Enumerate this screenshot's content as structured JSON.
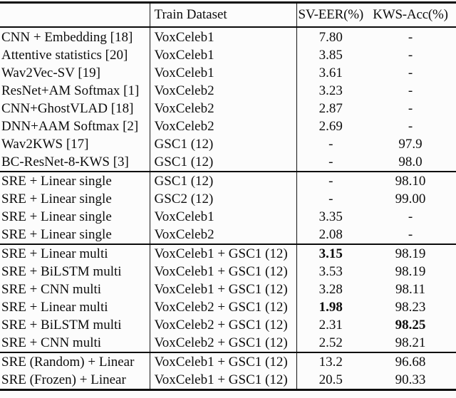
{
  "colors": {
    "background": "#fcfcfc",
    "text": "#0d0d0d",
    "rule": "#0a0a0a"
  },
  "table": {
    "columns": {
      "method": "",
      "dataset": "Train Dataset",
      "sv_eer": "SV-EER(%)",
      "kws_acc": "KWS-Acc(%)"
    },
    "empty_value": "-",
    "sections": [
      {
        "rows": [
          {
            "method": "CNN + Embedding [18]",
            "dataset": "VoxCeleb1",
            "sv": "7.80",
            "kws": "-"
          },
          {
            "method": "Attentive statistics [20]",
            "dataset": "VoxCeleb1",
            "sv": "3.85",
            "kws": "-"
          },
          {
            "method": "Wav2Vec-SV [19]",
            "dataset": "VoxCeleb1",
            "sv": "3.61",
            "kws": "-"
          },
          {
            "method": "ResNet+AM Softmax [1]",
            "dataset": "VoxCeleb2",
            "sv": "3.23",
            "kws": "-"
          },
          {
            "method": "CNN+GhostVLAD [18]",
            "dataset": "VoxCeleb2",
            "sv": "2.87",
            "kws": "-"
          },
          {
            "method": "DNN+AAM Softmax [2]",
            "dataset": "VoxCeleb2",
            "sv": "2.69",
            "kws": "-"
          },
          {
            "method": "Wav2KWS [17]",
            "dataset": "GSC1 (12)",
            "sv": "-",
            "kws": "97.9"
          },
          {
            "method": "BC-ResNet-8-KWS [3]",
            "dataset": "GSC1 (12)",
            "sv": "-",
            "kws": "98.0"
          }
        ]
      },
      {
        "rows": [
          {
            "method": "SRE + Linear single",
            "dataset": "GSC1 (12)",
            "sv": "-",
            "kws": "98.10"
          },
          {
            "method": "SRE + Linear single",
            "dataset": "GSC2 (12)",
            "sv": "-",
            "kws": "99.00"
          },
          {
            "method": "SRE + Linear single",
            "dataset": "VoxCeleb1",
            "sv": "3.35",
            "kws": "-"
          },
          {
            "method": "SRE + Linear single",
            "dataset": "VoxCeleb2",
            "sv": "2.08",
            "kws": "-"
          }
        ]
      },
      {
        "rows": [
          {
            "method": "SRE + Linear multi",
            "dataset": "VoxCeleb1 + GSC1 (12)",
            "sv": "3.15",
            "sv_bold": true,
            "kws": "98.19"
          },
          {
            "method": "SRE + BiLSTM multi",
            "dataset": "VoxCeleb1 + GSC1 (12)",
            "sv": "3.53",
            "kws": "98.19"
          },
          {
            "method": "SRE + CNN multi",
            "dataset": "VoxCeleb1 + GSC1 (12)",
            "sv": "3.28",
            "kws": "98.11"
          },
          {
            "method": "SRE + Linear multi",
            "dataset": "VoxCeleb2 + GSC1 (12)",
            "sv": "1.98",
            "sv_bold": true,
            "kws": "98.23"
          },
          {
            "method": "SRE + BiLSTM multi",
            "dataset": "VoxCeleb2 + GSC1 (12)",
            "sv": "2.31",
            "kws": "98.25",
            "kws_bold": true
          },
          {
            "method": "SRE + CNN multi",
            "dataset": "VoxCeleb2 + GSC1 (12)",
            "sv": "2.52",
            "kws": "98.21"
          }
        ]
      },
      {
        "rows": [
          {
            "method": "SRE (Random) + Linear",
            "dataset": "VoxCeleb1 + GSC1 (12)",
            "sv": "13.2",
            "kws": "96.68"
          },
          {
            "method": "SRE (Frozen) + Linear",
            "dataset": "VoxCeleb1 + GSC1 (12)",
            "sv": "20.5",
            "kws": "90.33"
          }
        ]
      }
    ]
  }
}
